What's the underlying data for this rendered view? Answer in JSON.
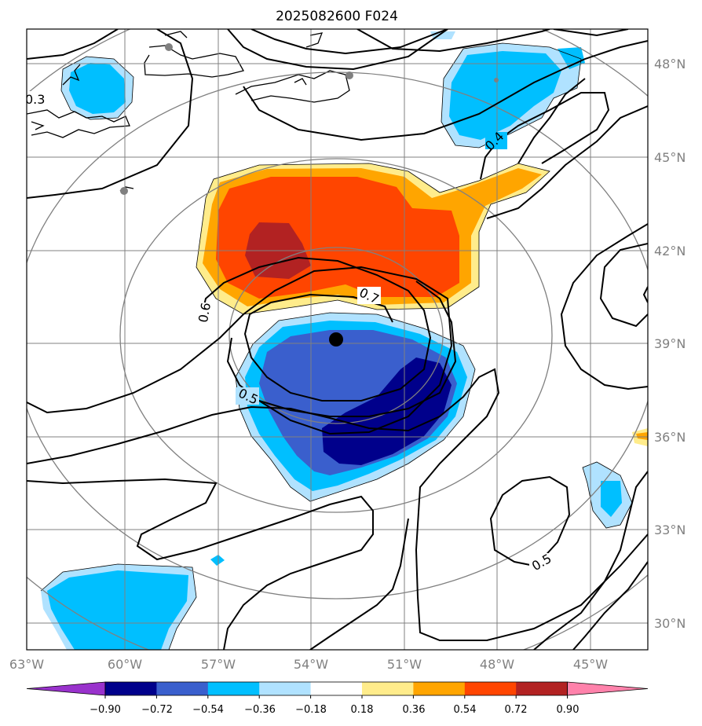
{
  "title": "2025082600 F024",
  "map": {
    "lon_labels": [
      "63°W",
      "60°W",
      "57°W",
      "54°W",
      "51°W",
      "48°W",
      "45°W"
    ],
    "lat_labels": [
      "48°N",
      "45°N",
      "42°N",
      "39°N",
      "36°N",
      "33°N",
      "30°N"
    ],
    "contour_labels": [
      "0.3",
      "0.4",
      "0.6",
      "0.7",
      "0.5",
      "0.5"
    ],
    "center_marker": {
      "lon": -53.2,
      "lat": 39.1
    }
  },
  "colorbar": {
    "levels": [
      "−0.90",
      "−0.72",
      "−0.54",
      "−0.36",
      "−0.18",
      "0.18",
      "0.36",
      "0.54",
      "0.72",
      "0.90"
    ],
    "colors": [
      "#9932cc",
      "#00008b",
      "#3a5fcd",
      "#00bfff",
      "#b0e2ff",
      "#ffffff",
      "#ffec8b",
      "#ffa500",
      "#ff4500",
      "#b22222",
      "#ff82ab"
    ]
  },
  "colors": {
    "grid": "#808080",
    "contour": "#000000",
    "land_marker": "#808080"
  }
}
